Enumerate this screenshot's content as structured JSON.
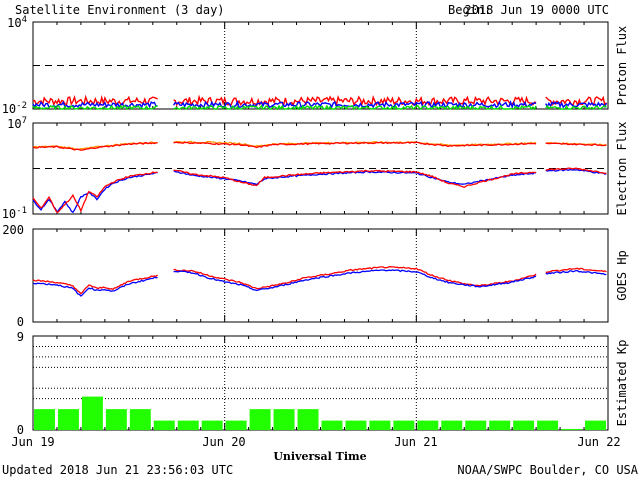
{
  "header": {
    "title": "Satellite Environment (3 day)",
    "begin_label": "Begin:",
    "begin_value": "2018 Jun 19 0000 UTC"
  },
  "footer": {
    "updated": "Updated 2018 Jun 21 23:56:03 UTC",
    "credit": "NOAA/SWPC Boulder, CO USA"
  },
  "chart_data": [
    {
      "type": "line",
      "name": "proton-flux",
      "ylabel": "Proton Flux",
      "y_ticks": [
        {
          "base": "10",
          "exp": "4"
        },
        {
          "base": "10",
          "exp": "-2"
        }
      ],
      "y_log_range": [
        -2,
        4
      ],
      "threshold_log": 1,
      "gap_hours": [
        [
          15.6,
          17.5
        ],
        [
          63.2,
          64.2
        ]
      ],
      "series": [
        {
          "color": "#ff0000",
          "base_log": -1.45,
          "noise": 0.28
        },
        {
          "color": "#0000ff",
          "base_log": -1.7,
          "noise": 0.18
        },
        {
          "color": "#00dd00",
          "base_log": -1.92,
          "noise": 0.14
        }
      ]
    },
    {
      "type": "line",
      "name": "electron-flux",
      "ylabel": "Electron Flux",
      "y_ticks": [
        {
          "base": "10",
          "exp": "7"
        },
        {
          "base": "10",
          "exp": "-1"
        }
      ],
      "y_log_range": [
        -1,
        7
      ],
      "threshold_log": 3,
      "gap_hours": [
        [
          15.6,
          17.5
        ],
        [
          63.2,
          64.2
        ]
      ],
      "series": [
        {
          "color": "#ff9900",
          "points": [
            [
              0,
              4.9
            ],
            [
              3,
              4.95
            ],
            [
              6,
              4.7
            ],
            [
              8,
              4.9
            ],
            [
              12,
              5.2
            ],
            [
              15.5,
              5.3
            ],
            [
              17.5,
              5.35
            ],
            [
              22,
              5.3
            ],
            [
              26,
              5.2
            ],
            [
              28,
              4.95
            ],
            [
              30,
              5.15
            ],
            [
              36,
              5.25
            ],
            [
              42,
              5.3
            ],
            [
              48,
              5.3
            ],
            [
              52,
              5.05
            ],
            [
              56,
              5.1
            ],
            [
              63,
              5.25
            ],
            [
              64.2,
              5.25
            ],
            [
              72,
              5.1
            ]
          ]
        },
        {
          "color": "#ff0000",
          "points": [
            [
              0,
              4.85
            ],
            [
              3,
              4.9
            ],
            [
              6,
              4.6
            ],
            [
              8,
              4.85
            ],
            [
              12,
              5.15
            ],
            [
              15.5,
              5.25
            ],
            [
              17.5,
              5.3
            ],
            [
              22,
              5.2
            ],
            [
              26,
              5.1
            ],
            [
              28,
              4.85
            ],
            [
              30,
              5.1
            ],
            [
              36,
              5.2
            ],
            [
              42,
              5.25
            ],
            [
              48,
              5.25
            ],
            [
              52,
              5.0
            ],
            [
              56,
              5.05
            ],
            [
              63,
              5.2
            ],
            [
              64.2,
              5.2
            ],
            [
              72,
              5.05
            ]
          ]
        },
        {
          "color": "#0000ff",
          "points": [
            [
              0,
              0.2
            ],
            [
              1,
              -0.6
            ],
            [
              2,
              0.3
            ],
            [
              3,
              -0.8
            ],
            [
              4,
              0.1
            ],
            [
              5,
              -0.9
            ],
            [
              6,
              0.5
            ],
            [
              7,
              0.9
            ],
            [
              8,
              0.3
            ],
            [
              9,
              1.2
            ],
            [
              10,
              1.7
            ],
            [
              12,
              2.2
            ],
            [
              15.5,
              2.6
            ],
            [
              17.5,
              2.8
            ],
            [
              20,
              2.4
            ],
            [
              24,
              2.1
            ],
            [
              26,
              1.9
            ],
            [
              28,
              1.6
            ],
            [
              29,
              2.1
            ],
            [
              32,
              2.3
            ],
            [
              36,
              2.5
            ],
            [
              42,
              2.7
            ],
            [
              48,
              2.6
            ],
            [
              50,
              2.2
            ],
            [
              52,
              1.8
            ],
            [
              54,
              1.6
            ],
            [
              56,
              1.9
            ],
            [
              60,
              2.4
            ],
            [
              63,
              2.6
            ],
            [
              64.2,
              2.8
            ],
            [
              68,
              2.9
            ],
            [
              72,
              2.5
            ]
          ]
        },
        {
          "color": "#ff0000",
          "points": [
            [
              0,
              0.4
            ],
            [
              1,
              -0.5
            ],
            [
              2,
              0.5
            ],
            [
              3,
              -0.9
            ],
            [
              5,
              0.6
            ],
            [
              6,
              -0.7
            ],
            [
              7,
              1.0
            ],
            [
              8,
              0.5
            ],
            [
              9,
              1.4
            ],
            [
              10,
              1.8
            ],
            [
              12,
              2.3
            ],
            [
              15.5,
              2.7
            ],
            [
              17.5,
              2.9
            ],
            [
              20,
              2.5
            ],
            [
              24,
              2.2
            ],
            [
              26,
              1.8
            ],
            [
              28,
              1.5
            ],
            [
              29,
              2.2
            ],
            [
              32,
              2.4
            ],
            [
              36,
              2.6
            ],
            [
              42,
              2.8
            ],
            [
              48,
              2.7
            ],
            [
              50,
              2.3
            ],
            [
              52,
              1.7
            ],
            [
              54,
              1.4
            ],
            [
              56,
              1.8
            ],
            [
              60,
              2.5
            ],
            [
              63,
              2.7
            ],
            [
              64.2,
              2.9
            ],
            [
              68,
              3.0
            ],
            [
              72,
              2.6
            ]
          ]
        }
      ]
    },
    {
      "type": "line",
      "name": "goes-hp",
      "ylabel": "GOES Hp",
      "y_ticks": [
        200,
        0
      ],
      "ylim": [
        0,
        200
      ],
      "gap_hours": [
        [
          15.6,
          17.5
        ],
        [
          63.2,
          64.2
        ]
      ],
      "series": [
        {
          "color": "#ff0000",
          "points": [
            [
              0,
              90
            ],
            [
              3,
              85
            ],
            [
              5,
              78
            ],
            [
              6,
              60
            ],
            [
              7,
              80
            ],
            [
              8,
              72
            ],
            [
              9,
              75
            ],
            [
              10,
              70
            ],
            [
              12,
              88
            ],
            [
              15.5,
              100
            ],
            [
              17.5,
              112
            ],
            [
              20,
              110
            ],
            [
              22,
              100
            ],
            [
              24,
              92
            ],
            [
              26,
              85
            ],
            [
              28,
              72
            ],
            [
              30,
              78
            ],
            [
              32,
              85
            ],
            [
              34,
              95
            ],
            [
              36,
              100
            ],
            [
              40,
              112
            ],
            [
              44,
              118
            ],
            [
              48,
              115
            ],
            [
              50,
              100
            ],
            [
              52,
              90
            ],
            [
              54,
              82
            ],
            [
              56,
              78
            ],
            [
              60,
              88
            ],
            [
              63,
              102
            ],
            [
              64.2,
              108
            ],
            [
              68,
              115
            ],
            [
              72,
              108
            ]
          ]
        },
        {
          "color": "#0000ff",
          "points": [
            [
              0,
              84
            ],
            [
              3,
              80
            ],
            [
              5,
              72
            ],
            [
              6,
              55
            ],
            [
              7,
              74
            ],
            [
              8,
              68
            ],
            [
              9,
              70
            ],
            [
              10,
              66
            ],
            [
              12,
              82
            ],
            [
              15.5,
              96
            ],
            [
              17.5,
              110
            ],
            [
              20,
              106
            ],
            [
              22,
              95
            ],
            [
              24,
              86
            ],
            [
              26,
              80
            ],
            [
              28,
              68
            ],
            [
              30,
              74
            ],
            [
              32,
              82
            ],
            [
              34,
              90
            ],
            [
              36,
              96
            ],
            [
              40,
              106
            ],
            [
              44,
              112
            ],
            [
              48,
              108
            ],
            [
              50,
              95
            ],
            [
              52,
              85
            ],
            [
              54,
              80
            ],
            [
              56,
              76
            ],
            [
              60,
              86
            ],
            [
              63,
              98
            ],
            [
              64.2,
              104
            ],
            [
              68,
              110
            ],
            [
              72,
              102
            ]
          ]
        }
      ]
    },
    {
      "type": "bar",
      "name": "estimated-kp",
      "ylabel": "Estimated Kp",
      "y_ticks": [
        9,
        0
      ],
      "ylim": [
        0,
        9
      ],
      "bar_color": "#22ff00",
      "values": [
        2,
        2,
        3.2,
        2,
        2,
        0.9,
        0.9,
        0.9,
        0.9,
        2,
        2,
        2,
        0.9,
        0.9,
        0.9,
        0.9,
        0.9,
        0.9,
        0.9,
        0.9,
        0.9,
        0.9,
        0.1,
        0.9
      ]
    }
  ],
  "x_axis": {
    "label": "Universal Time",
    "tick_labels": [
      "Jun 19",
      "Jun 20",
      "Jun 21",
      "Jun 22"
    ]
  }
}
